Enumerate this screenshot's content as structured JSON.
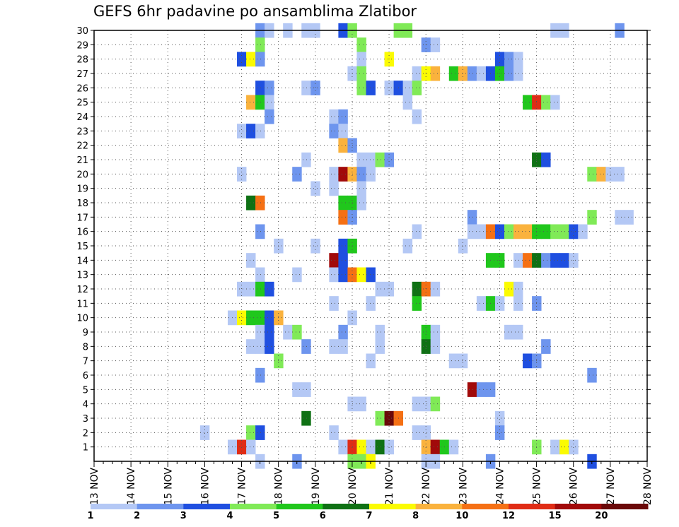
{
  "chart_data": {
    "type": "heatmap",
    "title": "GEFS 6hr padavine po ansamblima Zlatibor",
    "xlabel": "",
    "ylabel": "",
    "x_tick_labels": [
      "13 NOV",
      "14 NOV",
      "15 NOV",
      "16 NOV",
      "17 NOV",
      "18 NOV",
      "19 NOV",
      "20 NOV",
      "21 NOV",
      "22 NOV",
      "23 NOV",
      "24 NOV",
      "25 NOV",
      "26 NOV",
      "27 NOV",
      "28 NOV"
    ],
    "xlim_days": [
      13,
      28
    ],
    "y_tick_labels": [
      "1",
      "2",
      "3",
      "4",
      "5",
      "6",
      "7",
      "8",
      "9",
      "10",
      "11",
      "12",
      "13",
      "14",
      "15",
      "16",
      "17",
      "18",
      "19",
      "20",
      "21",
      "22",
      "23",
      "24",
      "25",
      "26",
      "27",
      "28",
      "29",
      "30"
    ],
    "ylim": [
      0,
      30
    ],
    "grid": true,
    "colorbar": {
      "placement": "bottom",
      "labels": [
        "1",
        "2",
        "3",
        "4",
        "5",
        "6",
        "7",
        "8",
        "10",
        "12",
        "15",
        "20"
      ],
      "colors": [
        "#b4c8f5",
        "#6e95ee",
        "#1f4fe0",
        "#80ea57",
        "#20c71c",
        "#0f7114",
        "#fbfb02",
        "#fab23d",
        "#f57014",
        "#e02c15",
        "#a10a0a",
        "#6a0909"
      ]
    },
    "cells": [
      [
        17.5,
        30,
        1
      ],
      [
        17.75,
        30,
        0
      ],
      [
        18.25,
        30,
        0
      ],
      [
        18.75,
        30,
        0
      ],
      [
        19.0,
        30,
        0
      ],
      [
        19.75,
        30,
        2
      ],
      [
        20.0,
        30,
        3
      ],
      [
        21.25,
        30,
        3
      ],
      [
        21.5,
        30,
        3
      ],
      [
        25.5,
        30,
        0
      ],
      [
        25.75,
        30,
        0
      ],
      [
        27.25,
        30,
        1
      ],
      [
        17.5,
        29,
        3
      ],
      [
        20.25,
        29,
        3
      ],
      [
        22.0,
        29,
        1
      ],
      [
        22.25,
        29,
        0
      ],
      [
        17.0,
        28,
        2
      ],
      [
        17.25,
        28,
        6
      ],
      [
        17.5,
        28,
        1
      ],
      [
        20.25,
        28,
        0
      ],
      [
        21.0,
        28,
        6
      ],
      [
        24.0,
        28,
        2
      ],
      [
        24.25,
        28,
        1
      ],
      [
        24.5,
        28,
        0
      ],
      [
        20.0,
        27,
        0
      ],
      [
        20.25,
        27,
        3
      ],
      [
        21.75,
        27,
        0
      ],
      [
        22.0,
        27,
        6
      ],
      [
        22.25,
        27,
        7
      ],
      [
        22.75,
        27,
        4
      ],
      [
        23.0,
        27,
        7
      ],
      [
        23.25,
        27,
        1
      ],
      [
        23.5,
        27,
        0
      ],
      [
        23.75,
        27,
        2
      ],
      [
        24.0,
        27,
        4
      ],
      [
        24.25,
        27,
        1
      ],
      [
        24.5,
        27,
        0
      ],
      [
        17.5,
        26,
        2
      ],
      [
        17.75,
        26,
        1
      ],
      [
        18.75,
        26,
        0
      ],
      [
        19.0,
        26,
        1
      ],
      [
        20.25,
        26,
        3
      ],
      [
        20.5,
        26,
        2
      ],
      [
        21.0,
        26,
        0
      ],
      [
        21.25,
        26,
        2
      ],
      [
        21.5,
        26,
        0
      ],
      [
        21.75,
        26,
        3
      ],
      [
        17.25,
        25,
        7
      ],
      [
        17.5,
        25,
        4
      ],
      [
        17.75,
        25,
        0
      ],
      [
        21.5,
        25,
        0
      ],
      [
        24.75,
        25,
        4
      ],
      [
        25.0,
        25,
        9
      ],
      [
        25.25,
        25,
        3
      ],
      [
        25.5,
        25,
        0
      ],
      [
        17.75,
        24,
        1
      ],
      [
        19.5,
        24,
        0
      ],
      [
        19.75,
        24,
        1
      ],
      [
        21.75,
        24,
        0
      ],
      [
        17.0,
        23,
        0
      ],
      [
        17.25,
        23,
        2
      ],
      [
        17.5,
        23,
        0
      ],
      [
        19.5,
        23,
        1
      ],
      [
        19.75,
        23,
        0
      ],
      [
        19.75,
        22,
        7
      ],
      [
        20.0,
        22,
        1
      ],
      [
        18.75,
        21,
        0
      ],
      [
        20.25,
        21,
        0
      ],
      [
        20.5,
        21,
        0
      ],
      [
        20.75,
        21,
        3
      ],
      [
        21.0,
        21,
        1
      ],
      [
        25.0,
        21,
        5
      ],
      [
        25.25,
        21,
        2
      ],
      [
        17.0,
        20,
        0
      ],
      [
        18.5,
        20,
        1
      ],
      [
        19.5,
        20,
        0
      ],
      [
        19.75,
        20,
        10
      ],
      [
        20.0,
        20,
        7
      ],
      [
        20.25,
        20,
        1
      ],
      [
        20.5,
        20,
        0
      ],
      [
        26.5,
        20,
        3
      ],
      [
        26.75,
        20,
        7
      ],
      [
        27.0,
        20,
        0
      ],
      [
        27.25,
        20,
        0
      ],
      [
        19.0,
        19,
        0
      ],
      [
        19.5,
        19,
        0
      ],
      [
        20.25,
        19,
        0
      ],
      [
        17.25,
        18,
        5
      ],
      [
        17.5,
        18,
        8
      ],
      [
        19.75,
        18,
        4
      ],
      [
        20.0,
        18,
        4
      ],
      [
        20.25,
        18,
        0
      ],
      [
        19.75,
        17,
        8
      ],
      [
        20.0,
        17,
        1
      ],
      [
        23.25,
        17,
        1
      ],
      [
        26.5,
        17,
        3
      ],
      [
        27.25,
        17,
        0
      ],
      [
        27.5,
        17,
        0
      ],
      [
        17.5,
        16,
        1
      ],
      [
        21.75,
        16,
        0
      ],
      [
        23.25,
        16,
        0
      ],
      [
        23.5,
        16,
        0
      ],
      [
        23.75,
        16,
        8
      ],
      [
        24.0,
        16,
        2
      ],
      [
        24.25,
        16,
        3
      ],
      [
        24.5,
        16,
        7
      ],
      [
        24.75,
        16,
        7
      ],
      [
        25.0,
        16,
        4
      ],
      [
        25.25,
        16,
        4
      ],
      [
        25.5,
        16,
        3
      ],
      [
        25.75,
        16,
        3
      ],
      [
        26.0,
        16,
        2
      ],
      [
        26.25,
        16,
        0
      ],
      [
        18.0,
        15,
        0
      ],
      [
        19.0,
        15,
        0
      ],
      [
        19.75,
        15,
        2
      ],
      [
        20.0,
        15,
        4
      ],
      [
        21.5,
        15,
        0
      ],
      [
        23.0,
        15,
        0
      ],
      [
        17.25,
        14,
        0
      ],
      [
        19.5,
        14,
        10
      ],
      [
        19.75,
        14,
        2
      ],
      [
        23.75,
        14,
        4
      ],
      [
        24.0,
        14,
        4
      ],
      [
        24.5,
        14,
        0
      ],
      [
        24.75,
        14,
        8
      ],
      [
        25.0,
        14,
        5
      ],
      [
        25.25,
        14,
        1
      ],
      [
        25.5,
        14,
        2
      ],
      [
        25.75,
        14,
        2
      ],
      [
        26.0,
        14,
        0
      ],
      [
        17.5,
        13,
        0
      ],
      [
        18.5,
        13,
        0
      ],
      [
        19.5,
        13,
        0
      ],
      [
        19.75,
        13,
        2
      ],
      [
        20.0,
        13,
        8
      ],
      [
        20.25,
        13,
        6
      ],
      [
        20.5,
        13,
        2
      ],
      [
        17.0,
        12,
        0
      ],
      [
        17.25,
        12,
        0
      ],
      [
        17.5,
        12,
        4
      ],
      [
        17.75,
        12,
        2
      ],
      [
        20.75,
        12,
        0
      ],
      [
        21.0,
        12,
        0
      ],
      [
        21.75,
        12,
        5
      ],
      [
        22.0,
        12,
        8
      ],
      [
        22.25,
        12,
        0
      ],
      [
        24.25,
        12,
        6
      ],
      [
        24.5,
        12,
        0
      ],
      [
        19.5,
        11,
        0
      ],
      [
        20.5,
        11,
        0
      ],
      [
        21.75,
        11,
        4
      ],
      [
        23.5,
        11,
        0
      ],
      [
        23.75,
        11,
        4
      ],
      [
        24.0,
        11,
        0
      ],
      [
        24.5,
        11,
        0
      ],
      [
        25.0,
        11,
        1
      ],
      [
        16.75,
        10,
        0
      ],
      [
        17.0,
        10,
        6
      ],
      [
        17.25,
        10,
        4
      ],
      [
        17.5,
        10,
        4
      ],
      [
        17.75,
        10,
        2
      ],
      [
        18.0,
        10,
        7
      ],
      [
        20.0,
        10,
        0
      ],
      [
        17.5,
        9,
        0
      ],
      [
        17.75,
        9,
        2
      ],
      [
        18.25,
        9,
        0
      ],
      [
        18.5,
        9,
        3
      ],
      [
        19.75,
        9,
        1
      ],
      [
        20.75,
        9,
        0
      ],
      [
        22.0,
        9,
        4
      ],
      [
        22.25,
        9,
        0
      ],
      [
        24.25,
        9,
        0
      ],
      [
        24.5,
        9,
        0
      ],
      [
        17.25,
        8,
        0
      ],
      [
        17.5,
        8,
        0
      ],
      [
        17.75,
        8,
        2
      ],
      [
        18.75,
        8,
        1
      ],
      [
        19.5,
        8,
        0
      ],
      [
        19.75,
        8,
        0
      ],
      [
        20.75,
        8,
        0
      ],
      [
        22.0,
        8,
        5
      ],
      [
        22.25,
        8,
        0
      ],
      [
        25.25,
        8,
        1
      ],
      [
        18.0,
        7,
        3
      ],
      [
        20.5,
        7,
        0
      ],
      [
        22.75,
        7,
        0
      ],
      [
        23.0,
        7,
        0
      ],
      [
        24.75,
        7,
        2
      ],
      [
        25.0,
        7,
        1
      ],
      [
        17.5,
        6,
        1
      ],
      [
        26.5,
        6,
        1
      ],
      [
        18.5,
        5,
        0
      ],
      [
        18.75,
        5,
        0
      ],
      [
        23.25,
        5,
        10
      ],
      [
        23.5,
        5,
        1
      ],
      [
        23.75,
        5,
        1
      ],
      [
        20.0,
        4,
        0
      ],
      [
        20.25,
        4,
        0
      ],
      [
        21.75,
        4,
        0
      ],
      [
        22.0,
        4,
        0
      ],
      [
        22.25,
        4,
        3
      ],
      [
        18.75,
        3,
        5
      ],
      [
        20.75,
        3,
        3
      ],
      [
        21.0,
        3,
        11
      ],
      [
        21.25,
        3,
        8
      ],
      [
        24.0,
        3,
        0
      ],
      [
        16.0,
        2,
        0
      ],
      [
        17.25,
        2,
        3
      ],
      [
        17.5,
        2,
        2
      ],
      [
        19.5,
        2,
        0
      ],
      [
        21.75,
        2,
        0
      ],
      [
        22.0,
        2,
        0
      ],
      [
        24.0,
        2,
        1
      ],
      [
        16.75,
        1,
        0
      ],
      [
        17.0,
        1,
        9
      ],
      [
        17.25,
        1,
        0
      ],
      [
        19.75,
        1,
        0
      ],
      [
        20.0,
        1,
        9
      ],
      [
        20.25,
        1,
        6
      ],
      [
        20.5,
        1,
        0
      ],
      [
        20.75,
        1,
        5
      ],
      [
        21.0,
        1,
        0
      ],
      [
        22.0,
        1,
        7
      ],
      [
        22.25,
        1,
        10
      ],
      [
        22.5,
        1,
        4
      ],
      [
        22.75,
        1,
        0
      ],
      [
        25.0,
        1,
        3
      ],
      [
        25.5,
        1,
        0
      ],
      [
        25.75,
        1,
        6
      ],
      [
        26.0,
        1,
        0
      ],
      [
        17.5,
        0,
        0
      ],
      [
        18.5,
        0,
        1
      ],
      [
        20.0,
        0,
        3
      ],
      [
        20.25,
        0,
        3
      ],
      [
        20.5,
        0,
        6
      ],
      [
        22.0,
        0,
        0
      ],
      [
        22.25,
        0,
        0
      ],
      [
        23.75,
        0,
        1
      ],
      [
        26.5,
        0,
        2
      ]
    ]
  }
}
